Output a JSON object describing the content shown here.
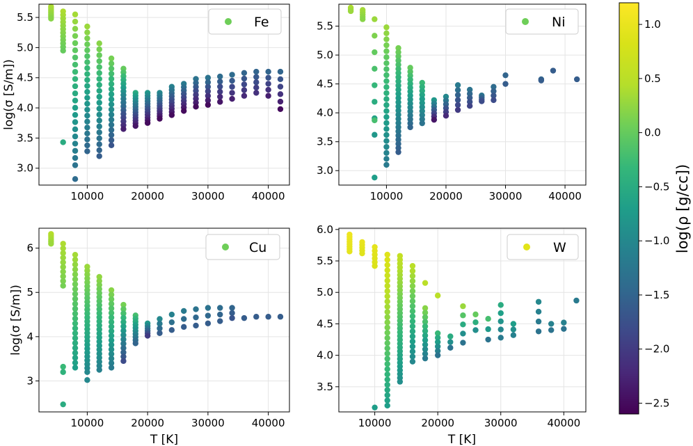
{
  "colorbar": {
    "label": "log(ρ [g/cc])",
    "range": [
      -2.6,
      1.2
    ],
    "ticks": [
      1.0,
      0.5,
      0.0,
      -0.5,
      -1.0,
      -1.5,
      -2.0,
      -2.5
    ],
    "tick_labels": [
      "1.0",
      "0.5",
      "0.0",
      "−0.5",
      "−1.0",
      "−1.5",
      "−2.0",
      "−2.5"
    ],
    "colormap": "viridis"
  },
  "chart_data": [
    {
      "type": "scatter",
      "legend": "Fe",
      "legend_color": "#6ece58",
      "ylabel": "log(σ [S/m])",
      "xlabel": "",
      "xlim": [
        2000,
        43500
      ],
      "ylim": [
        2.72,
        5.72
      ],
      "xticks": [
        10000,
        20000,
        30000,
        40000
      ],
      "yticks": [
        3.0,
        3.5,
        4.0,
        4.5,
        5.0,
        5.5
      ],
      "ytick_labels": [
        "3.0",
        "3.5",
        "4.0",
        "4.5",
        "5.0",
        "5.5"
      ],
      "grid": true,
      "columns": [
        {
          "x": 4000,
          "y_high": 5.68,
          "y_low": 5.48,
          "c_high": 0.4,
          "c_low": 0.2,
          "n": 9
        },
        {
          "x": 6000,
          "y_high": 5.6,
          "y_low": 4.95,
          "c_high": 0.4,
          "c_low": 0.0,
          "n": 12
        },
        {
          "x": 8000,
          "y_high": 5.55,
          "y_low": 3.05,
          "c_high": 0.35,
          "c_low": -1.3,
          "n": 22
        },
        {
          "x": 10000,
          "y_high": 5.35,
          "y_low": 3.28,
          "c_high": 0.3,
          "c_low": -1.5,
          "n": 22
        },
        {
          "x": 12000,
          "y_high": 5.07,
          "y_low": 3.2,
          "c_high": 0.2,
          "c_low": -1.6,
          "n": 20
        },
        {
          "x": 14000,
          "y_high": 4.82,
          "y_low": 3.38,
          "c_high": 0.1,
          "c_low": -1.7,
          "n": 18
        },
        {
          "x": 16000,
          "y_high": 4.65,
          "y_low": 3.65,
          "c_high": 0.0,
          "c_low": -2.3,
          "n": 17
        },
        {
          "x": 18000,
          "y_high": 4.25,
          "y_low": 3.7,
          "c_high": -0.5,
          "c_low": -2.4,
          "n": 13
        },
        {
          "x": 20000,
          "y_high": 4.25,
          "y_low": 3.75,
          "c_high": -0.8,
          "c_low": -2.5,
          "n": 12
        },
        {
          "x": 22000,
          "y_high": 4.25,
          "y_low": 3.82,
          "c_high": -1.0,
          "c_low": -2.5,
          "n": 11
        },
        {
          "x": 24000,
          "y_high": 4.35,
          "y_low": 3.88,
          "c_high": -1.1,
          "c_low": -2.5,
          "n": 10
        },
        {
          "x": 26000,
          "y_high": 4.4,
          "y_low": 3.95,
          "c_high": -1.2,
          "c_low": -2.5,
          "n": 9
        },
        {
          "x": 28000,
          "y_high": 4.48,
          "y_low": 4.02,
          "c_high": -1.3,
          "c_low": -2.5,
          "n": 8
        },
        {
          "x": 30000,
          "y_high": 4.5,
          "y_low": 4.05,
          "c_high": -1.3,
          "c_low": -2.5,
          "n": 7
        },
        {
          "x": 32000,
          "y_high": 4.52,
          "y_low": 4.1,
          "c_high": -1.4,
          "c_low": -2.4,
          "n": 6
        },
        {
          "x": 34000,
          "y_high": 4.55,
          "y_low": 4.15,
          "c_high": -1.4,
          "c_low": -2.3,
          "n": 5
        },
        {
          "x": 36000,
          "y_high": 4.58,
          "y_low": 4.2,
          "c_high": -1.5,
          "c_low": -2.2,
          "n": 5
        },
        {
          "x": 38000,
          "y_high": 4.6,
          "y_low": 4.25,
          "c_high": -1.5,
          "c_low": -2.1,
          "n": 5
        },
        {
          "x": 40000,
          "y_high": 4.6,
          "y_low": 4.2,
          "c_high": -1.5,
          "c_low": -2.3,
          "n": 5
        },
        {
          "x": 42000,
          "y_high": 4.6,
          "y_low": 3.98,
          "c_high": -1.5,
          "c_low": -2.5,
          "n": 6
        }
      ],
      "outliers": [
        {
          "x": 6000,
          "y": 3.43,
          "c": -0.5
        },
        {
          "x": 8000,
          "y": 2.82,
          "c": -1.4
        }
      ]
    },
    {
      "type": "scatter",
      "legend": "Ni",
      "legend_color": "#6ece58",
      "ylabel": "",
      "xlabel": "",
      "xlim": [
        2000,
        43500
      ],
      "ylim": [
        2.75,
        5.88
      ],
      "xticks": [
        10000,
        20000,
        30000,
        40000
      ],
      "yticks": [
        3.0,
        3.5,
        4.0,
        4.5,
        5.0,
        5.5
      ],
      "ytick_labels": [
        "3.0",
        "3.5",
        "4.0",
        "4.5",
        "5.0",
        "5.5"
      ],
      "grid": true,
      "columns": [
        {
          "x": 4000,
          "y_high": 5.82,
          "y_low": 5.76,
          "c_high": 0.4,
          "c_low": 0.3,
          "n": 3
        },
        {
          "x": 6000,
          "y_high": 5.78,
          "y_low": 5.62,
          "c_high": 0.35,
          "c_low": 0.2,
          "n": 5
        },
        {
          "x": 8000,
          "y_high": 5.62,
          "y_low": 3.62,
          "c_high": 0.3,
          "c_low": -0.8,
          "n": 8
        },
        {
          "x": 10000,
          "y_high": 5.48,
          "y_low": 3.1,
          "c_high": 0.3,
          "c_low": -1.2,
          "n": 24
        },
        {
          "x": 12000,
          "y_high": 5.12,
          "y_low": 3.32,
          "c_high": 0.1,
          "c_low": -1.6,
          "n": 26
        },
        {
          "x": 14000,
          "y_high": 4.78,
          "y_low": 3.75,
          "c_high": 0.0,
          "c_low": -1.5,
          "n": 16
        },
        {
          "x": 16000,
          "y_high": 4.52,
          "y_low": 3.82,
          "c_high": -0.3,
          "c_low": -1.3,
          "n": 11
        },
        {
          "x": 18000,
          "y_high": 4.22,
          "y_low": 3.88,
          "c_high": -0.8,
          "c_low": -2.4,
          "n": 7
        },
        {
          "x": 20000,
          "y_high": 4.28,
          "y_low": 3.95,
          "c_high": -1.0,
          "c_low": -2.2,
          "n": 6
        },
        {
          "x": 22000,
          "y_high": 4.48,
          "y_low": 4.05,
          "c_high": -1.2,
          "c_low": -2.0,
          "n": 6
        },
        {
          "x": 24000,
          "y_high": 4.4,
          "y_low": 4.12,
          "c_high": -1.3,
          "c_low": -1.9,
          "n": 5
        },
        {
          "x": 26000,
          "y_high": 4.3,
          "y_low": 4.2,
          "c_high": -1.3,
          "c_low": -1.8,
          "n": 4
        },
        {
          "x": 28000,
          "y_high": 4.45,
          "y_low": 4.22,
          "c_high": -1.4,
          "c_low": -1.8,
          "n": 4
        },
        {
          "x": 30000,
          "y_high": 4.65,
          "y_low": 4.5,
          "c_high": -1.5,
          "c_low": -1.6,
          "n": 2
        },
        {
          "x": 36000,
          "y_high": 4.58,
          "y_low": 4.56,
          "c_high": -1.5,
          "c_low": -1.6,
          "n": 2
        },
        {
          "x": 38000,
          "y_high": 4.73,
          "y_low": 4.73,
          "c_high": -1.6,
          "c_low": -1.6,
          "n": 1
        },
        {
          "x": 42000,
          "y_high": 4.58,
          "y_low": 4.58,
          "c_high": -1.6,
          "c_low": -1.6,
          "n": 1
        }
      ],
      "outliers": [
        {
          "x": 8000,
          "y": 2.88,
          "c": -0.7
        },
        {
          "x": 8000,
          "y": 3.87,
          "c": -0.2
        }
      ]
    },
    {
      "type": "scatter",
      "legend": "Cu",
      "legend_color": "#6ece58",
      "ylabel": "log(σ [S/m])",
      "xlabel": "T [K]",
      "xlim": [
        2000,
        43500
      ],
      "ylim": [
        2.3,
        6.45
      ],
      "xticks": [
        10000,
        20000,
        30000,
        40000
      ],
      "yticks": [
        3,
        4,
        5,
        6
      ],
      "ytick_labels": [
        "3",
        "4",
        "5",
        "6"
      ],
      "grid": true,
      "columns": [
        {
          "x": 4000,
          "y_high": 6.32,
          "y_low": 6.1,
          "c_high": 0.45,
          "c_low": 0.3,
          "n": 6
        },
        {
          "x": 6000,
          "y_high": 6.1,
          "y_low": 5.15,
          "c_high": 0.4,
          "c_low": 0.1,
          "n": 10
        },
        {
          "x": 8000,
          "y_high": 5.85,
          "y_low": 3.3,
          "c_high": 0.35,
          "c_low": -0.7,
          "n": 24
        },
        {
          "x": 10000,
          "y_high": 5.58,
          "y_low": 3.2,
          "c_high": 0.3,
          "c_low": -1.0,
          "n": 28
        },
        {
          "x": 12000,
          "y_high": 5.35,
          "y_low": 3.25,
          "c_high": 0.25,
          "c_low": -1.1,
          "n": 24
        },
        {
          "x": 14000,
          "y_high": 5.05,
          "y_low": 3.3,
          "c_high": 0.2,
          "c_low": -1.2,
          "n": 18
        },
        {
          "x": 16000,
          "y_high": 4.72,
          "y_low": 3.45,
          "c_high": 0.1,
          "c_low": -1.8,
          "n": 14
        },
        {
          "x": 18000,
          "y_high": 4.48,
          "y_low": 3.85,
          "c_high": -0.2,
          "c_low": -1.5,
          "n": 10
        },
        {
          "x": 20000,
          "y_high": 4.3,
          "y_low": 4.02,
          "c_high": -0.8,
          "c_low": -2.0,
          "n": 6
        },
        {
          "x": 22000,
          "y_high": 4.4,
          "y_low": 4.08,
          "c_high": -1.0,
          "c_low": -1.6,
          "n": 4
        },
        {
          "x": 24000,
          "y_high": 4.5,
          "y_low": 4.15,
          "c_high": -1.1,
          "c_low": -1.6,
          "n": 3
        },
        {
          "x": 26000,
          "y_high": 4.58,
          "y_low": 4.22,
          "c_high": -1.2,
          "c_low": -1.6,
          "n": 3
        },
        {
          "x": 28000,
          "y_high": 4.62,
          "y_low": 4.25,
          "c_high": -1.3,
          "c_low": -1.6,
          "n": 3
        },
        {
          "x": 30000,
          "y_high": 4.65,
          "y_low": 4.3,
          "c_high": -1.3,
          "c_low": -1.6,
          "n": 3
        },
        {
          "x": 32000,
          "y_high": 4.65,
          "y_low": 4.35,
          "c_high": -1.4,
          "c_low": -1.6,
          "n": 3
        },
        {
          "x": 34000,
          "y_high": 4.65,
          "y_low": 4.42,
          "c_high": -1.5,
          "c_low": -1.7,
          "n": 3
        },
        {
          "x": 36000,
          "y_high": 4.42,
          "y_low": 4.42,
          "c_high": -1.6,
          "c_low": -1.6,
          "n": 1
        },
        {
          "x": 38000,
          "y_high": 4.45,
          "y_low": 4.45,
          "c_high": -1.6,
          "c_low": -1.6,
          "n": 1
        },
        {
          "x": 40000,
          "y_high": 4.45,
          "y_low": 4.45,
          "c_high": -1.6,
          "c_low": -1.6,
          "n": 1
        },
        {
          "x": 42000,
          "y_high": 4.45,
          "y_low": 4.45,
          "c_high": -1.6,
          "c_low": -1.6,
          "n": 1
        }
      ],
      "outliers": [
        {
          "x": 6000,
          "y": 2.47,
          "c": -0.5
        },
        {
          "x": 6000,
          "y": 3.2,
          "c": -0.4
        },
        {
          "x": 6000,
          "y": 3.32,
          "c": -0.3
        },
        {
          "x": 10000,
          "y": 3.02,
          "c": -1.0
        }
      ]
    },
    {
      "type": "scatter",
      "legend": "W",
      "legend_color": "#e2e418",
      "ylabel": "",
      "xlabel": "T [K]",
      "xlim": [
        4300,
        43500
      ],
      "ylim": [
        3.1,
        6.02
      ],
      "xticks": [
        10000,
        20000,
        30000,
        40000
      ],
      "yticks": [
        3.5,
        4.0,
        4.5,
        5.0,
        5.5,
        6.0
      ],
      "ytick_labels": [
        "3.5",
        "4.0",
        "4.5",
        "5.0",
        "5.5",
        "6.0"
      ],
      "grid": true,
      "columns": [
        {
          "x": 6000,
          "y_high": 5.92,
          "y_low": 5.65,
          "c_high": 1.05,
          "c_low": 0.95,
          "n": 8
        },
        {
          "x": 8000,
          "y_high": 5.8,
          "y_low": 5.62,
          "c_high": 1.0,
          "c_low": 0.9,
          "n": 5
        },
        {
          "x": 10000,
          "y_high": 5.72,
          "y_low": 5.42,
          "c_high": 0.95,
          "c_low": 0.85,
          "n": 6
        },
        {
          "x": 12000,
          "y_high": 5.6,
          "y_low": 3.2,
          "c_high": 0.9,
          "c_low": -0.7,
          "n": 30
        },
        {
          "x": 14000,
          "y_high": 5.58,
          "y_low": 3.58,
          "c_high": 0.6,
          "c_low": -0.9,
          "n": 34
        },
        {
          "x": 16000,
          "y_high": 5.42,
          "y_low": 3.9,
          "c_high": 0.5,
          "c_low": -1.0,
          "n": 20
        },
        {
          "x": 18000,
          "y_high": 4.75,
          "y_low": 3.95,
          "c_high": 0.2,
          "c_low": -1.2,
          "n": 12
        },
        {
          "x": 20000,
          "y_high": 4.35,
          "y_low": 4.0,
          "c_high": -0.3,
          "c_low": -1.3,
          "n": 6
        },
        {
          "x": 22000,
          "y_high": 4.3,
          "y_low": 4.12,
          "c_high": -0.5,
          "c_low": -1.3,
          "n": 3
        },
        {
          "x": 24000,
          "y_high": 4.78,
          "y_low": 4.2,
          "c_high": 0.3,
          "c_low": -1.3,
          "n": 5
        },
        {
          "x": 26000,
          "y_high": 4.65,
          "y_low": 4.4,
          "c_high": 0.0,
          "c_low": -0.9,
          "n": 3
        },
        {
          "x": 28000,
          "y_high": 4.58,
          "y_low": 4.25,
          "c_high": -0.2,
          "c_low": -1.3,
          "n": 3
        },
        {
          "x": 30000,
          "y_high": 4.8,
          "y_low": 4.28,
          "c_high": -0.5,
          "c_low": -1.2,
          "n": 5
        },
        {
          "x": 32000,
          "y_high": 4.5,
          "y_low": 4.32,
          "c_high": -0.7,
          "c_low": -1.1,
          "n": 3
        },
        {
          "x": 36000,
          "y_high": 4.85,
          "y_low": 4.38,
          "c_high": -1.0,
          "c_low": -1.3,
          "n": 4
        },
        {
          "x": 38000,
          "y_high": 4.5,
          "y_low": 4.4,
          "c_high": -1.1,
          "c_low": -1.3,
          "n": 2
        },
        {
          "x": 40000,
          "y_high": 4.52,
          "y_low": 4.42,
          "c_high": -1.1,
          "c_low": -1.3,
          "n": 2
        },
        {
          "x": 42000,
          "y_high": 4.87,
          "y_low": 4.87,
          "c_high": -1.2,
          "c_low": -1.2,
          "n": 1
        }
      ],
      "outliers": [
        {
          "x": 10000,
          "y": 3.17,
          "c": -0.7
        },
        {
          "x": 18000,
          "y": 5.15,
          "c": 0.5
        },
        {
          "x": 20000,
          "y": 4.95,
          "c": 0.5
        }
      ]
    }
  ]
}
